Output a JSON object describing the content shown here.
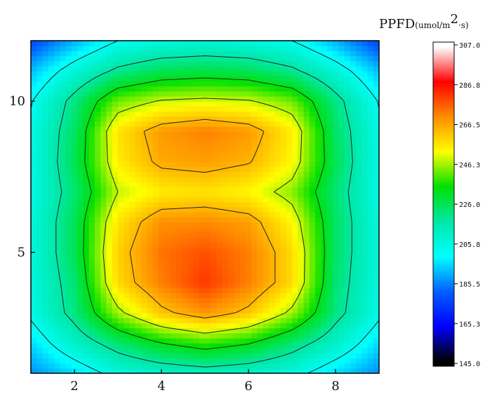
{
  "chart_data": {
    "type": "heatmap",
    "title": "",
    "xlabel": "",
    "ylabel": "",
    "xlim": [
      1,
      9
    ],
    "ylim": [
      1,
      12
    ],
    "x_ticks": [
      2,
      4,
      6,
      8
    ],
    "y_ticks": [
      5,
      10
    ],
    "colorbar": {
      "title_main": "PPFD",
      "title_unit_prefix": "(umol/m",
      "title_unit_sup": "2",
      "title_unit_suffix": "·s)",
      "min": 145.0,
      "max": 307.0,
      "tick_labels": [
        "307.0",
        "286.8",
        "266.5",
        "246.3",
        "226.0",
        "205.8",
        "185.5",
        "165.3",
        "145.0"
      ],
      "colors": [
        "#ffffff",
        "#ff0000",
        "#ff8c00",
        "#ffff00",
        "#00e000",
        "#00e8a8",
        "#00ffff",
        "#0060ff",
        "#0000ff",
        "#000000"
      ]
    },
    "grid_x": [
      1,
      2,
      3,
      4,
      5,
      6,
      7,
      8,
      9
    ],
    "grid_y": [
      1,
      2,
      3,
      4,
      5,
      6,
      7,
      8,
      9,
      10,
      11,
      12
    ],
    "z": [
      [
        175,
        186,
        200,
        205,
        208,
        205,
        200,
        186,
        175
      ],
      [
        186,
        206,
        222,
        235,
        242,
        236,
        222,
        206,
        186
      ],
      [
        198,
        220,
        252,
        272,
        282,
        272,
        252,
        220,
        198
      ],
      [
        200,
        222,
        268,
        286,
        298,
        286,
        268,
        222,
        200
      ],
      [
        200,
        226,
        270,
        288,
        294,
        286,
        268,
        224,
        200
      ],
      [
        200,
        226,
        266,
        283,
        284,
        280,
        262,
        224,
        200
      ],
      [
        198,
        222,
        255,
        264,
        266,
        262,
        250,
        222,
        198
      ],
      [
        198,
        226,
        264,
        278,
        280,
        276,
        262,
        226,
        198
      ],
      [
        198,
        224,
        266,
        281,
        286,
        281,
        264,
        224,
        198
      ],
      [
        194,
        220,
        248,
        256,
        258,
        256,
        248,
        220,
        194
      ],
      [
        182,
        202,
        218,
        226,
        228,
        226,
        218,
        202,
        182
      ],
      [
        162,
        180,
        195,
        200,
        202,
        200,
        195,
        180,
        162
      ]
    ],
    "contour_levels": [
      195,
      215,
      235,
      255,
      275
    ],
    "legend": "right"
  }
}
